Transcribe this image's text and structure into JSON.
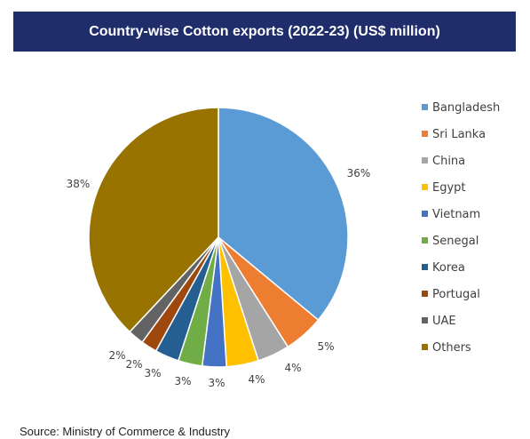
{
  "header": {
    "title": "Country-wise Cotton exports (2022-23) (US$ million)"
  },
  "source": "Source: Ministry of Commerce & Industry",
  "chart_data": {
    "type": "pie",
    "title": "Country-wise Cotton exports (2022-23) (US$ million)",
    "legend_position": "right",
    "categories": [
      "Bangladesh",
      "Sri Lanka",
      "China",
      "Egypt",
      "Vietnam",
      "Senegal",
      "Korea",
      "Portugal",
      "UAE",
      "Others"
    ],
    "values": [
      36,
      5,
      4,
      4,
      3,
      3,
      3,
      2,
      2,
      38
    ],
    "labels": [
      "36%",
      "5%",
      "4%",
      "4%",
      "3%",
      "3%",
      "3%",
      "2%",
      "2%",
      "38%"
    ],
    "colors": [
      "#5b9bd5",
      "#ed7d31",
      "#a5a5a5",
      "#ffc000",
      "#4472c4",
      "#70ad47",
      "#255e91",
      "#9e480e",
      "#636363",
      "#997300"
    ]
  }
}
